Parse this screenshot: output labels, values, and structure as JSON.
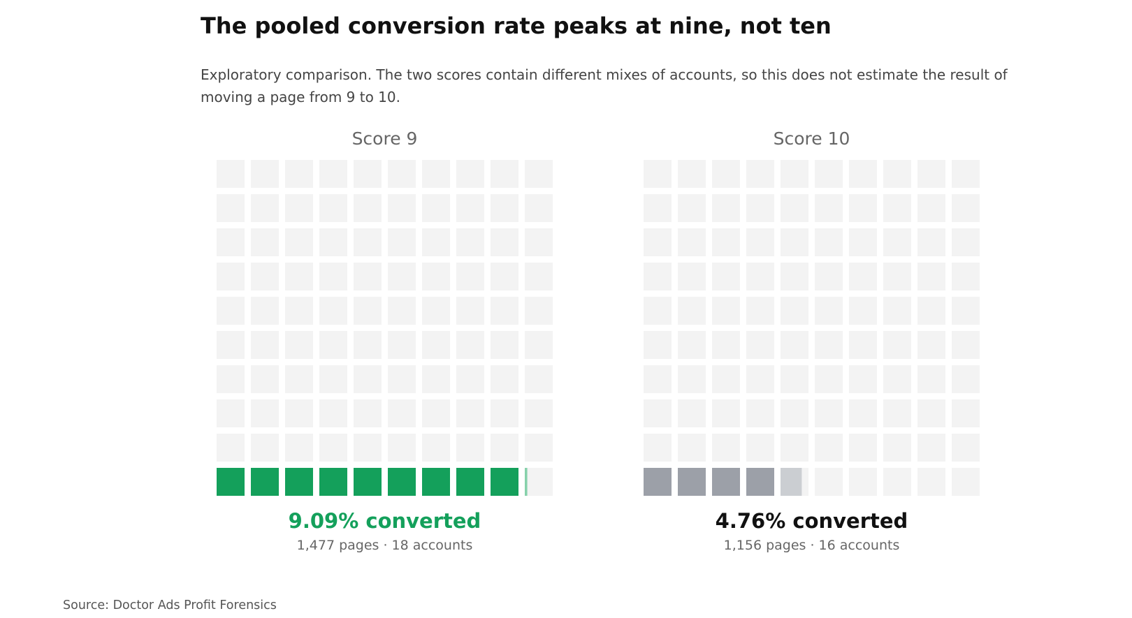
{
  "title": "The pooled conversion rate peaks at nine, not ten",
  "subtitle": "Exploratory comparison. The two scores contain different mixes of accounts, so this does not estimate the result of moving a page from 9 to 10.",
  "source": "Source: Doctor Ads Profit Forensics",
  "colors": {
    "empty_cell": "#f3f3f3",
    "highlight": "#14a05b",
    "highlight_partial": "#86d1ab",
    "neutral": "#9ca0a8",
    "neutral_partial": "#cbced2",
    "panel_label": "#666666",
    "stat_neutral": "#111111",
    "detail": "#666666"
  },
  "chart_data": {
    "type": "waffle",
    "grid": {
      "rows": 10,
      "columns": 10
    },
    "panels": [
      {
        "label": "Score 9",
        "value_percent": 9.09,
        "stat_label": "9.09% converted",
        "detail": "1,477 pages · 18 accounts",
        "pages": 1477,
        "accounts": 18,
        "highlight": true
      },
      {
        "label": "Score 10",
        "value_percent": 4.76,
        "stat_label": "4.76% converted",
        "detail": "1,156 pages · 16 accounts",
        "pages": 1156,
        "accounts": 16,
        "highlight": false
      }
    ]
  }
}
